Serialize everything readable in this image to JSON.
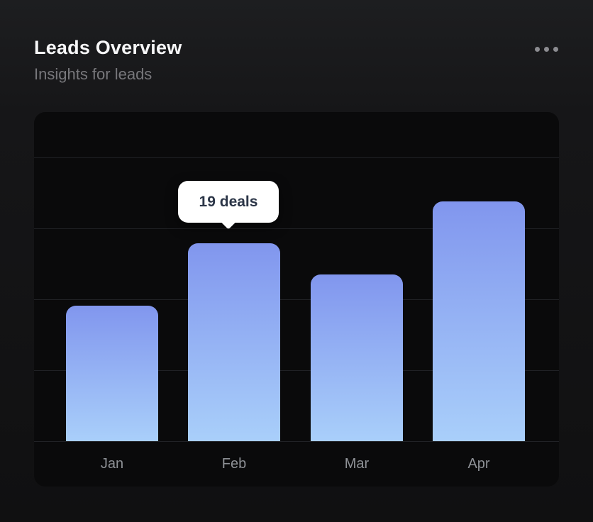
{
  "header": {
    "title": "Leads Overview",
    "subtitle": "Insights for leads",
    "menu_icon": "ellipsis-horizontal-icon"
  },
  "chart": {
    "tooltip_label": "19 deals"
  },
  "chart_data": {
    "type": "bar",
    "title": "Leads Overview",
    "subtitle": "Insights for leads",
    "categories": [
      "Jan",
      "Feb",
      "Mar",
      "Apr"
    ],
    "values": [
      13,
      19,
      16,
      23
    ],
    "unit": "deals",
    "highlight": {
      "category": "Feb",
      "value": 19,
      "tooltip": "19 deals"
    },
    "xlabel": "",
    "ylabel": "",
    "ylim": [
      0,
      32
    ],
    "grid": "horizontal",
    "legend": false,
    "colors": {
      "bar_top": "#8196ee",
      "bar_bottom": "#a9cffa"
    }
  },
  "colors": {
    "card_bg": "#161618",
    "panel_bg": "#0a0a0b",
    "gridline": "#212226",
    "title": "#f7f7f8",
    "subtitle": "#77777b",
    "axis_label": "#8e9196",
    "tooltip_bg": "#ffffff",
    "tooltip_text": "#2b3547"
  }
}
